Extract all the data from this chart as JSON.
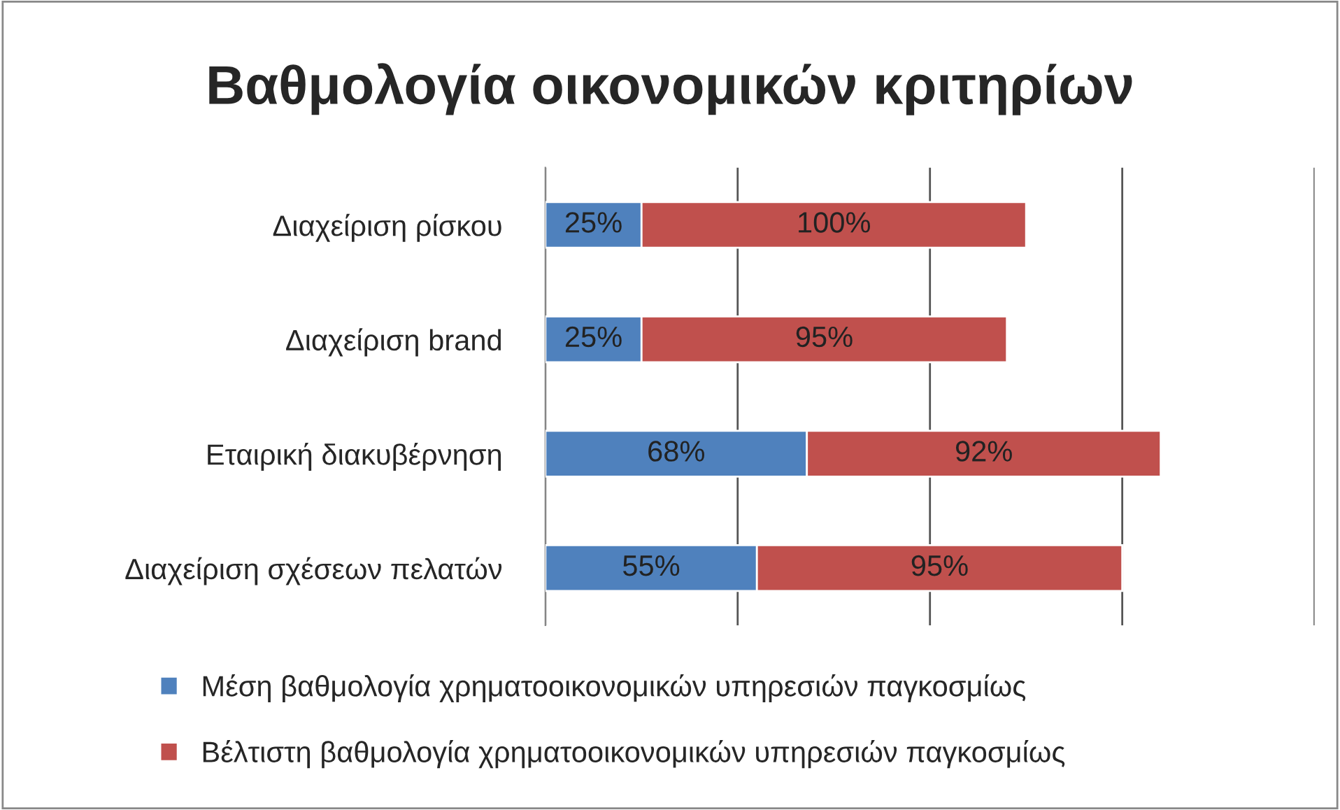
{
  "chart_data": {
    "type": "bar",
    "orientation": "horizontal",
    "stacked": true,
    "title": "Βαθμολογία οικονομικών κριτηρίων",
    "categories": [
      "Διαχείριση ρίσκου",
      "Διαχείριση brand",
      "Εταιρική διακυβέρνηση",
      "Διαχείριση σχέσεων πελατών"
    ],
    "series": [
      {
        "name": "Μέση βαθμολογία χρηματοοικονομικών υπηρεσιών παγκοσμίως",
        "color": "#4f81bd",
        "values": [
          25,
          25,
          68,
          55
        ],
        "value_labels": [
          "25%",
          "25%",
          "68%",
          "55%"
        ]
      },
      {
        "name": "Βέλτιστη βαθμολογία χρηματοοικονομικών υπηρεσιών παγκοσμίως",
        "color": "#c0504d",
        "values": [
          100,
          95,
          92,
          95
        ],
        "value_labels": [
          "100%",
          "95%",
          "92%",
          "95%"
        ]
      }
    ],
    "xlim": [
      0,
      200
    ],
    "xticks": [
      {
        "value": 0,
        "label": null
      },
      {
        "value": 50,
        "label": null
      },
      {
        "value": 100,
        "label": null
      },
      {
        "value": 150,
        "label": null
      },
      {
        "value": 200,
        "label": null
      }
    ],
    "tick_labels": "y",
    "grid": "x",
    "legend": "bottom"
  }
}
